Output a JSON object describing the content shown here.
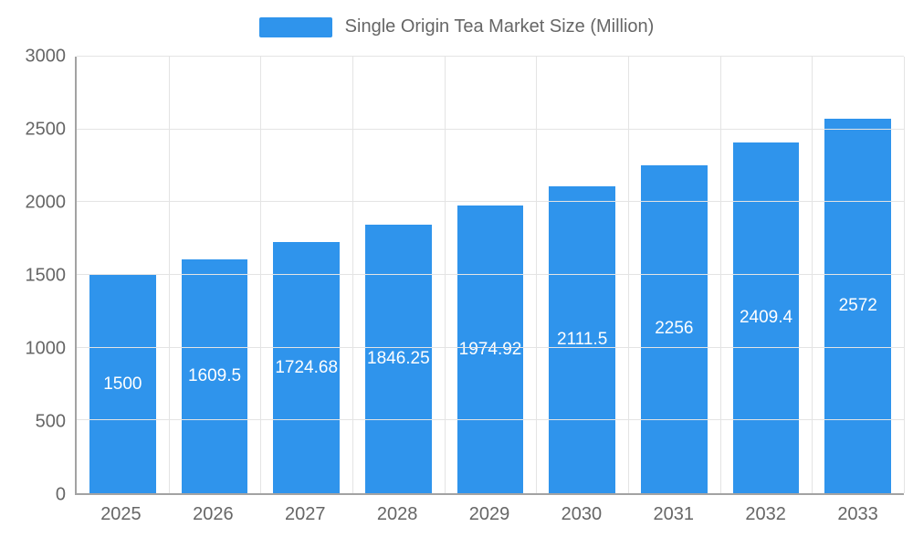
{
  "legend": {
    "label": "Single Origin Tea Market Size (Million)",
    "swatch_color": "#2f94ec"
  },
  "chart_data": {
    "type": "bar",
    "title": "Single Origin Tea Market Size (Million)",
    "categories": [
      "2025",
      "2026",
      "2027",
      "2028",
      "2029",
      "2030",
      "2031",
      "2032",
      "2033"
    ],
    "values": [
      1500,
      1609.5,
      1724.68,
      1846.25,
      1974.92,
      2111.5,
      2256,
      2409.4,
      2572
    ],
    "value_labels": [
      "1500",
      "1609.5",
      "1724.68",
      "1846.25",
      "1974.92",
      "2111.5",
      "2256",
      "2409.4",
      "2572"
    ],
    "xlabel": "",
    "ylabel": "",
    "ylim": [
      0,
      3000
    ],
    "yticks": [
      0,
      500,
      1000,
      1500,
      2000,
      2500,
      3000
    ],
    "bar_color": "#2f94ec",
    "grid": true,
    "legend_position": "top"
  }
}
